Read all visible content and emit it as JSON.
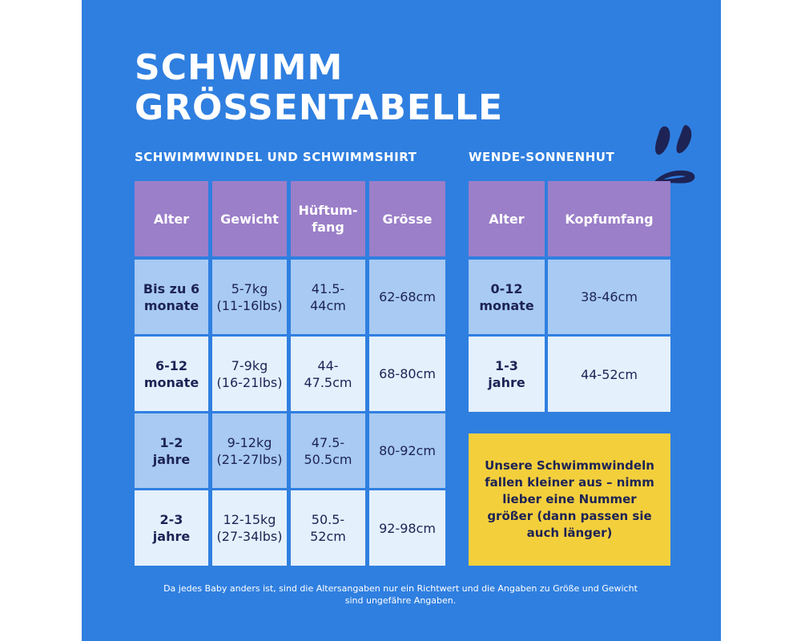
{
  "title": "SCHWIMM\nGRÖSSENTABELLE",
  "colors": {
    "background": "#2f7fe0",
    "header": "#9b7fc9",
    "row_dark": "#a8caf3",
    "row_light": "#e4f0fc",
    "note": "#f4cf3c",
    "text": "#1d2355"
  },
  "swim_table": {
    "heading": "SCHWIMMWINDEL UND SCHWIMMSHIRT",
    "columns": [
      "Alter",
      "Gewicht",
      "Hüftum-\nfang",
      "Grösse"
    ],
    "rows": [
      {
        "age": "Bis zu 6\nmonate",
        "weight": "5-7kg\n(11-16lbs)",
        "hip": "41.5-\n44cm",
        "size": "62-68cm"
      },
      {
        "age": "6-12\nmonate",
        "weight": "7-9kg\n(16-21lbs)",
        "hip": "44-\n47.5cm",
        "size": "68-80cm"
      },
      {
        "age": "1-2\njahre",
        "weight": "9-12kg\n(21-27lbs)",
        "hip": "47.5-\n50.5cm",
        "size": "80-92cm"
      },
      {
        "age": "2-3\njahre",
        "weight": "12-15kg\n(27-34lbs)",
        "hip": "50.5-\n52cm",
        "size": "92-98cm"
      }
    ]
  },
  "hat_table": {
    "heading": "WENDE-SONNENHUT",
    "columns": [
      "Alter",
      "Kopfumfang"
    ],
    "rows": [
      {
        "age": "0-12\nmonate",
        "head": "38-46cm"
      },
      {
        "age": "1-3\njahre",
        "head": "44-52cm"
      }
    ]
  },
  "note": "Unsere Schwimmwindeln fallen kleiner aus – nimm lieber eine Nummer größer (dann passen sie auch länger)",
  "footnote": "Da jedes Baby anders ist, sind die Altersangaben nur ein Richtwert und die Angaben zu Größe und Gewicht sind ungefähre Angaben.",
  "decoration_icon": "water-splash-icon"
}
